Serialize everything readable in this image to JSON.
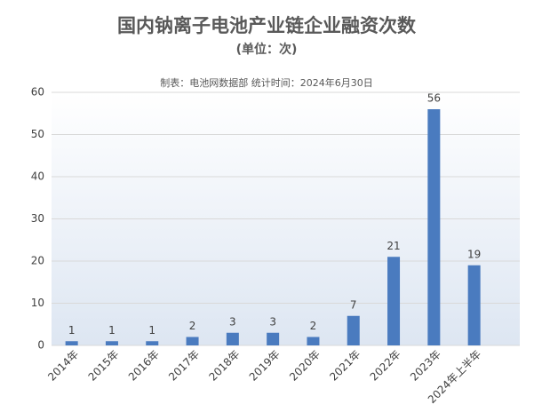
{
  "chart_data": {
    "type": "bar",
    "title": "国内钠离子电池产业链企业融资次数",
    "subtitle": "(单位：次)",
    "source": "制表：电池网数据部 统计时间：2024年6月30日",
    "categories": [
      "2014年",
      "2015年",
      "2016年",
      "2017年",
      "2018年",
      "2019年",
      "2020年",
      "2021年",
      "2022年",
      "2023年",
      "2024年上半年"
    ],
    "values": [
      1,
      1,
      1,
      2,
      3,
      3,
      2,
      7,
      21,
      56,
      19
    ],
    "color": "#4a7bbf",
    "ylim": [
      0,
      60
    ],
    "yticks": [
      0,
      10,
      20,
      30,
      40,
      50,
      60
    ],
    "grid": true
  }
}
